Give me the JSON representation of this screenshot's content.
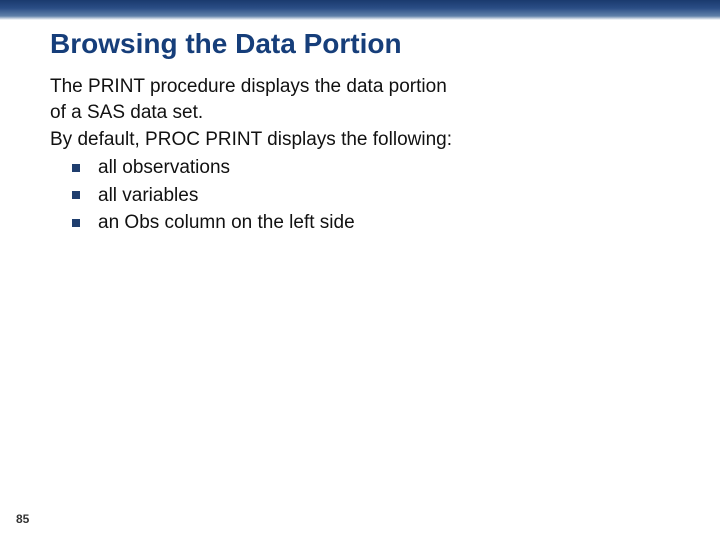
{
  "colors": {
    "title": "#163e7a",
    "body_text": "#111111",
    "bullet": "#1f3e6e"
  },
  "title": "Browsing the Data Portion",
  "intro": {
    "line1": "The PRINT procedure displays the data portion",
    "line2": "of a SAS data set."
  },
  "subhead": "By default, PROC PRINT displays the following:",
  "bullets": [
    "all observations",
    "all variables",
    "an Obs column on the left side"
  ],
  "page_number": "85"
}
